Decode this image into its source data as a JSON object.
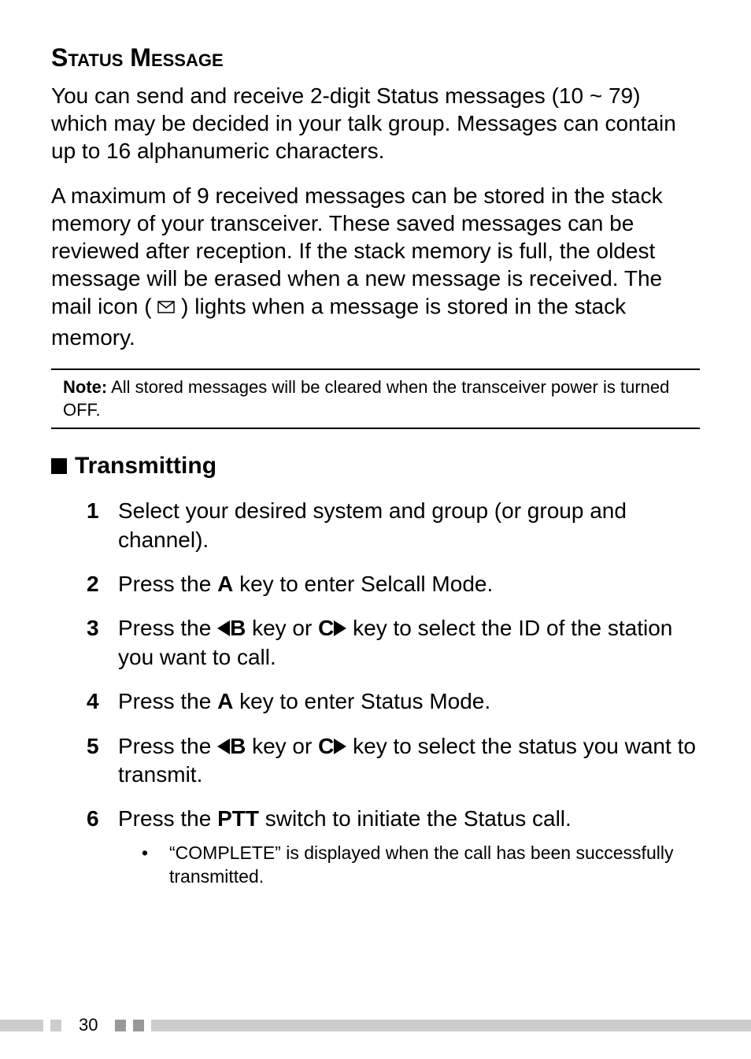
{
  "heading": "Status Message",
  "para1": "You can send and receive 2-digit Status messages (10 ~ 79) which may be decided in your talk group. Messages can contain up to 16 alphanumeric characters.",
  "para2_pre": "A maximum of 9 received messages can be stored in the stack memory of your transceiver.  These saved messages can be reviewed after reception.  If the stack memory is full, the oldest message will be erased when a new message is received.  The mail icon (",
  "para2_post": ") lights when a message is stored in the stack memory.",
  "note_label": "Note:",
  "note_text": "  All stored messages will be cleared when the transceiver power is turned OFF.",
  "subheading": "Transmitting",
  "steps": [
    {
      "num": "1",
      "parts": [
        {
          "t": "Select your desired system and group (or group and channel)."
        }
      ]
    },
    {
      "num": "2",
      "parts": [
        {
          "t": "Press the "
        },
        {
          "t": "A",
          "bold": true
        },
        {
          "t": " key to enter Selcall Mode."
        }
      ]
    },
    {
      "num": "3",
      "parts": [
        {
          "t": "Press the "
        },
        {
          "tri": "left"
        },
        {
          "t": "B",
          "bold": true
        },
        {
          "t": " key or "
        },
        {
          "t": "C",
          "bold": true
        },
        {
          "tri": "right"
        },
        {
          "t": " key to select the ID of the station you want to call."
        }
      ]
    },
    {
      "num": "4",
      "parts": [
        {
          "t": "Press the "
        },
        {
          "t": "A",
          "bold": true
        },
        {
          "t": " key to enter Status Mode."
        }
      ]
    },
    {
      "num": "5",
      "parts": [
        {
          "t": "Press the "
        },
        {
          "tri": "left"
        },
        {
          "t": "B",
          "bold": true
        },
        {
          "t": " key or "
        },
        {
          "t": "C",
          "bold": true
        },
        {
          "tri": "right"
        },
        {
          "t": " key to select the status you want to transmit."
        }
      ]
    },
    {
      "num": "6",
      "parts": [
        {
          "t": "Press the "
        },
        {
          "t": "PTT",
          "bold": true
        },
        {
          "t": " switch to initiate the Status call."
        }
      ],
      "sub": [
        {
          "t": "“COMPLETE” is displayed when the call has been successfully transmitted."
        }
      ]
    }
  ],
  "page_number": "30",
  "colors": {
    "text": "#000000",
    "bg": "#ffffff",
    "footer_light": "#cccccc",
    "footer_dark": "#999999"
  }
}
